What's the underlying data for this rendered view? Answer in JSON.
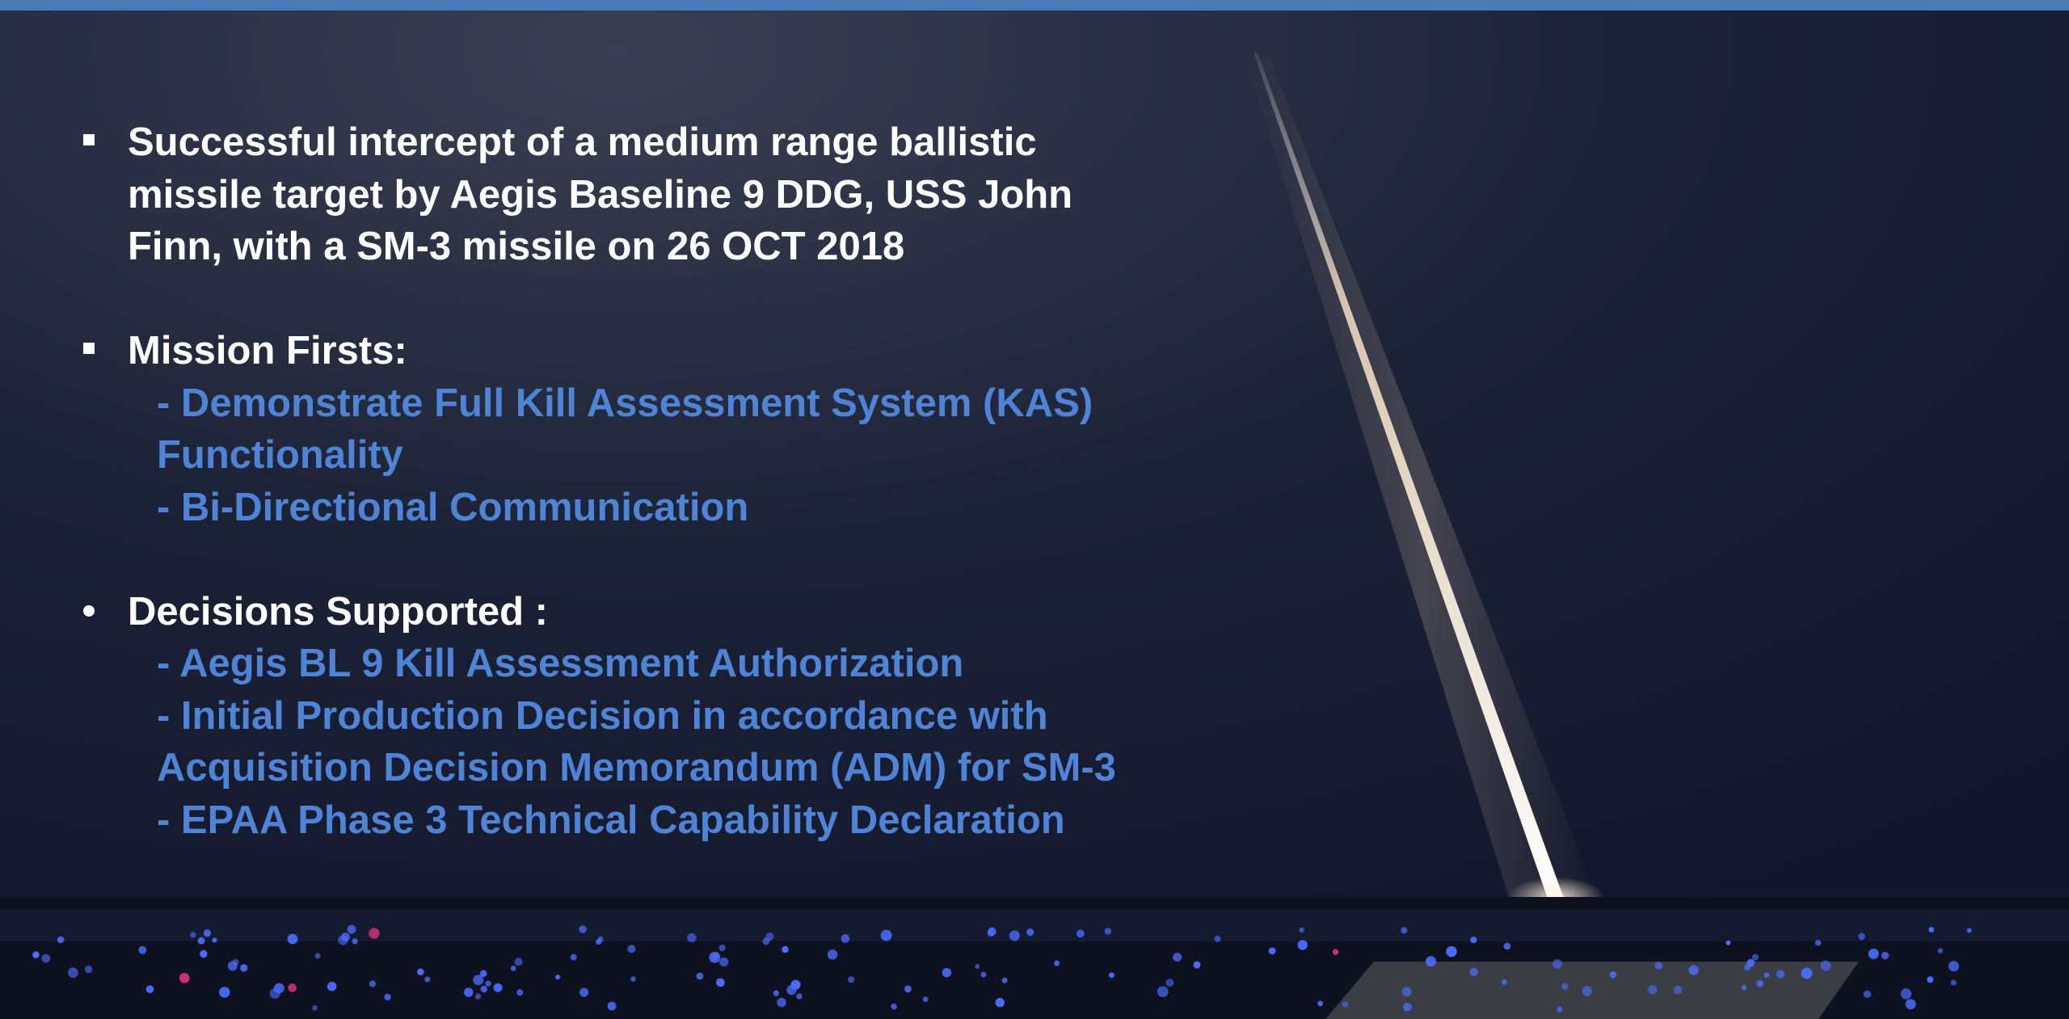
{
  "bullets": [
    {
      "lines": [
        "Successful intercept of a medium range ballistic",
        "missile target by Aegis Baseline 9 DDG, USS John",
        "Finn, with a SM-3 missile on 26 OCT 2018"
      ]
    },
    {
      "title": "Mission Firsts:",
      "items": [
        {
          "lines": [
            "- Demonstrate Full Kill Assessment System (KAS)",
            "Functionality"
          ]
        },
        {
          "lines": [
            "- Bi-Directional Communication"
          ]
        }
      ]
    },
    {
      "title": "Decisions Supported :",
      "items": [
        {
          "lines": [
            "- Aegis BL 9 Kill Assessment Authorization"
          ]
        },
        {
          "lines": [
            "- Initial Production Decision in accordance with",
            "Acquisition Decision Memorandum (ADM) for SM-3"
          ]
        },
        {
          "lines": [
            "- EPAA Phase 3 Technical Capability Declaration"
          ]
        }
      ]
    }
  ]
}
